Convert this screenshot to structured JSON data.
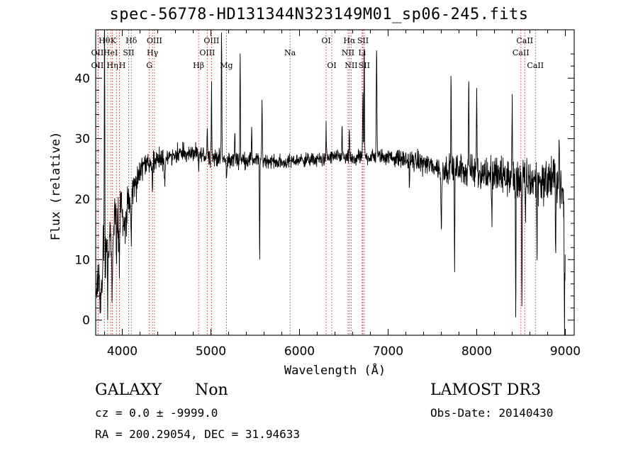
{
  "chart_data": {
    "type": "line",
    "title": "spec-56778-HD131344N323149M01_sp06-245.fits",
    "xlabel": "Wavelength (Å)",
    "ylabel": "Flux (relative)",
    "xlim": [
      3700,
      9100
    ],
    "ylim": [
      -2.5,
      48
    ],
    "xticks": [
      4000,
      5000,
      6000,
      7000,
      8000,
      9000
    ],
    "yticks": [
      0,
      10,
      20,
      30,
      40
    ],
    "line_color": "#000000",
    "marker_color": "#b22222",
    "anchors": [
      [
        3700,
        2
      ],
      [
        3730,
        8
      ],
      [
        3760,
        3
      ],
      [
        3790,
        12
      ],
      [
        3800,
        4
      ],
      [
        3820,
        14
      ],
      [
        3840,
        8
      ],
      [
        3860,
        15
      ],
      [
        3880,
        10
      ],
      [
        3900,
        14
      ],
      [
        3930,
        17
      ],
      [
        3960,
        14
      ],
      [
        3990,
        18
      ],
      [
        4020,
        15
      ],
      [
        4060,
        20
      ],
      [
        4100,
        19
      ],
      [
        4130,
        23
      ],
      [
        4160,
        22
      ],
      [
        4200,
        25
      ],
      [
        4250,
        26
      ],
      [
        4300,
        25.5
      ],
      [
        4400,
        26.5
      ],
      [
        4500,
        27
      ],
      [
        4600,
        27.5
      ],
      [
        4800,
        27.5
      ],
      [
        5000,
        27
      ],
      [
        5200,
        26.5
      ],
      [
        5400,
        26.5
      ],
      [
        5600,
        26.5
      ],
      [
        5800,
        26
      ],
      [
        6000,
        26.5
      ],
      [
        6200,
        26.5
      ],
      [
        6400,
        27
      ],
      [
        6600,
        26.5
      ],
      [
        6700,
        27
      ],
      [
        6800,
        27
      ],
      [
        7000,
        27
      ],
      [
        7200,
        26.5
      ],
      [
        7400,
        26
      ],
      [
        7600,
        25
      ],
      [
        7800,
        25
      ],
      [
        8000,
        24.5
      ],
      [
        8200,
        24
      ],
      [
        8400,
        23.5
      ],
      [
        8600,
        23
      ],
      [
        8800,
        23
      ],
      [
        8900,
        24
      ],
      [
        8980,
        20
      ],
      [
        9000,
        8
      ]
    ],
    "features": [
      [
        3800,
        3,
        47
      ],
      [
        3835,
        2,
        -6
      ],
      [
        3889,
        3,
        -6
      ],
      [
        3934,
        3,
        -8
      ],
      [
        3968,
        3,
        -6
      ],
      [
        4101,
        4,
        -5
      ],
      [
        4340,
        4,
        -4
      ],
      [
        4480,
        6,
        -4
      ],
      [
        4861,
        4,
        -2
      ],
      [
        4959,
        3,
        6
      ],
      [
        5007,
        3,
        12
      ],
      [
        5120,
        3,
        22
      ],
      [
        5177,
        5,
        -3
      ],
      [
        5270,
        3,
        5
      ],
      [
        5330,
        3,
        18
      ],
      [
        5460,
        3,
        6
      ],
      [
        5550,
        3,
        -16
      ],
      [
        5577,
        3,
        10
      ],
      [
        6300,
        3,
        5
      ],
      [
        6480,
        3,
        6
      ],
      [
        6715,
        3,
        11
      ],
      [
        6563,
        4,
        5
      ],
      [
        6730,
        3,
        20
      ],
      [
        6870,
        4,
        18
      ],
      [
        7240,
        3,
        -4
      ],
      [
        7600,
        5,
        -10
      ],
      [
        7710,
        3,
        15
      ],
      [
        7750,
        3,
        -17
      ],
      [
        7910,
        3,
        16
      ],
      [
        8000,
        4,
        12
      ],
      [
        8170,
        3,
        -8
      ],
      [
        8400,
        3,
        13
      ],
      [
        8440,
        3,
        -22
      ],
      [
        8510,
        3,
        -20
      ],
      [
        8550,
        3,
        -6
      ],
      [
        8680,
        3,
        -13
      ],
      [
        8890,
        3,
        -16
      ],
      [
        8930,
        3,
        7
      ],
      [
        8990,
        3,
        -15
      ]
    ],
    "noise": [
      [
        3700,
        3.2
      ],
      [
        4000,
        2.4
      ],
      [
        4200,
        1.4
      ],
      [
        4500,
        1.1
      ],
      [
        6000,
        0.8
      ],
      [
        7000,
        0.9
      ],
      [
        7600,
        1.4
      ],
      [
        8200,
        2.2
      ],
      [
        9000,
        2.8
      ]
    ],
    "lines": [
      {
        "wave": 3727,
        "label": "OII",
        "row": 1,
        "dx": -1
      },
      {
        "wave": 3727,
        "label": "OII",
        "row": 2,
        "dx": -1
      },
      {
        "wave": 3798,
        "label": "Hθ",
        "row": 0
      },
      {
        "wave": 3835,
        "label": "K",
        "row": 0,
        "dx": 8
      },
      {
        "wave": 3869,
        "label": "HeI",
        "row": 1
      },
      {
        "wave": 3889,
        "label": "Hη",
        "row": 2
      },
      {
        "wave": 3934,
        "label": "",
        "row": 0
      },
      {
        "wave": 3968,
        "label": "H",
        "row": 2,
        "dx": 4
      },
      {
        "wave": 4072,
        "label": "SII",
        "row": 1
      },
      {
        "wave": 4102,
        "label": "Hδ",
        "row": 0
      },
      {
        "wave": 4305,
        "label": "G",
        "row": 2
      },
      {
        "wave": 4341,
        "label": "Hγ",
        "row": 1
      },
      {
        "wave": 4363,
        "label": "OIII",
        "row": 0
      },
      {
        "wave": 4861,
        "label": "Hβ",
        "row": 2
      },
      {
        "wave": 4959,
        "label": "OIII",
        "row": 1
      },
      {
        "wave": 5007,
        "label": "OIII",
        "row": 0
      },
      {
        "wave": 5175,
        "label": "Mg",
        "row": 2
      },
      {
        "wave": 5893,
        "label": "Na",
        "row": 1
      },
      {
        "wave": 6300,
        "label": "OI",
        "row": 0
      },
      {
        "wave": 6364,
        "label": "OI",
        "row": 2
      },
      {
        "wave": 6548,
        "label": "NII",
        "row": 1
      },
      {
        "wave": 6563,
        "label": "Hα",
        "row": 0
      },
      {
        "wave": 6583,
        "label": "NII",
        "row": 2
      },
      {
        "wave": 6707,
        "label": "Li",
        "row": 1
      },
      {
        "wave": 6716,
        "label": "SII",
        "row": 0
      },
      {
        "wave": 6731,
        "label": "SII",
        "row": 2
      },
      {
        "wave": 8498,
        "label": "CaII",
        "row": 1
      },
      {
        "wave": 8542,
        "label": "CaII",
        "row": 0
      },
      {
        "wave": 8662,
        "label": "CaII",
        "row": 2
      }
    ]
  },
  "info": {
    "object_class": "GALAXY",
    "subclass": "Non",
    "survey": "LAMOST DR3",
    "redshift": "cz = 0.0 ± -9999.0",
    "obs_date": "Obs-Date: 20140430",
    "coords": "RA = 200.29054, DEC =  31.94633"
  }
}
